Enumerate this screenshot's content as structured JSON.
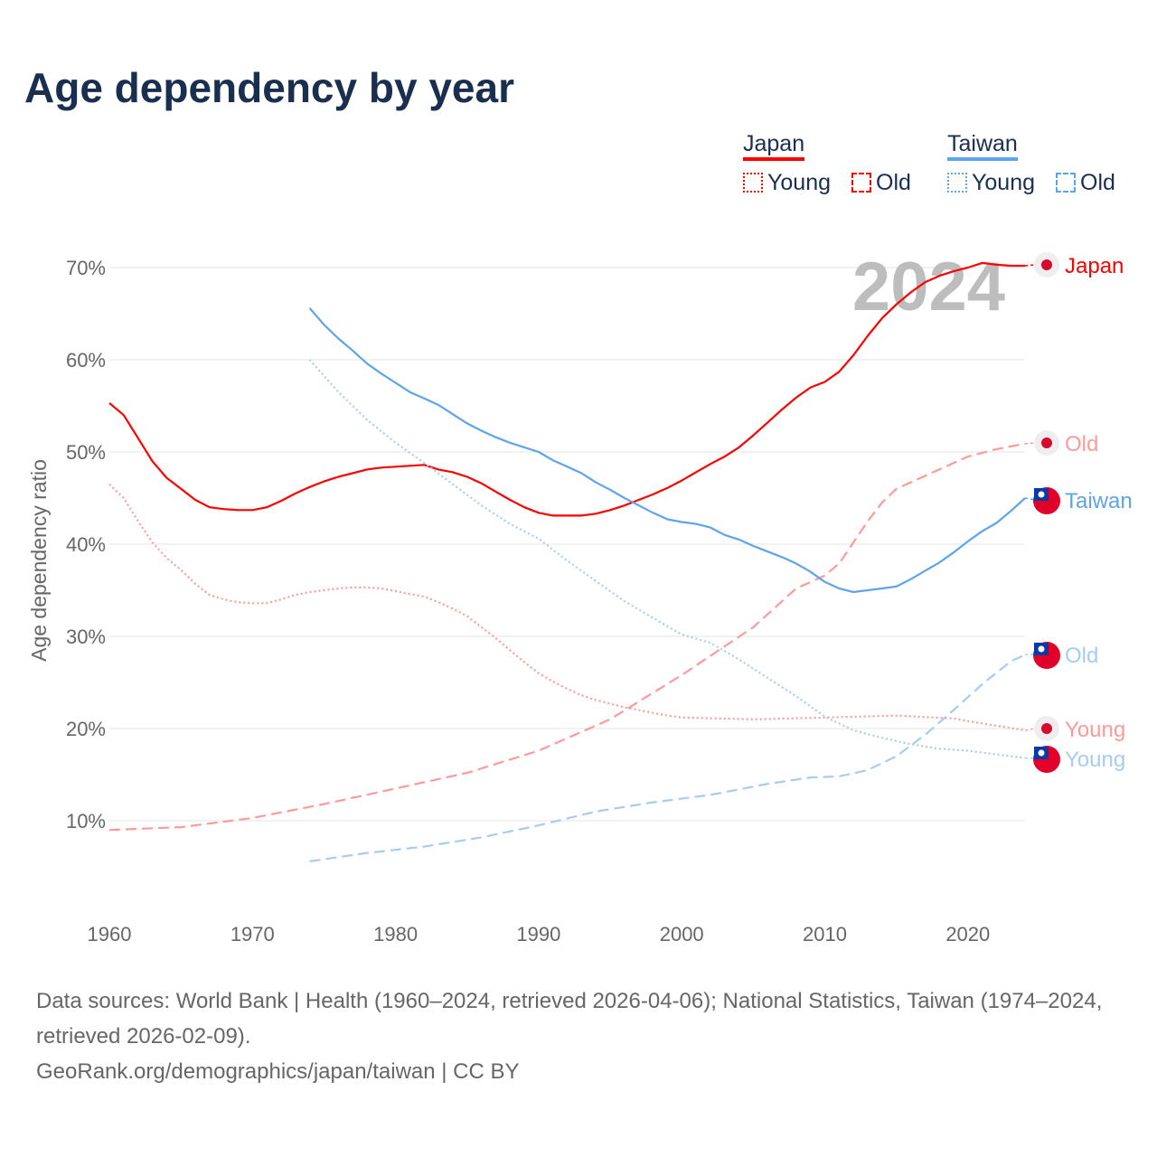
{
  "title": "Age dependency by year",
  "watermark_year": "2024",
  "legend": {
    "groups": [
      {
        "name": "Japan",
        "color": "#ff0000"
      },
      {
        "name": "Taiwan",
        "color": "#5fa3e8"
      }
    ],
    "young": "Young",
    "old": "Old"
  },
  "source": {
    "line1": "Data sources: World Bank | Health (1960–2024, retrieved 2026-04-06); National Statistics, Taiwan (1974–2024, retrieved 2026-02-09).",
    "line2": "GeoRank.org/demographics/japan/taiwan | CC BY"
  },
  "chart_data": {
    "type": "line",
    "title": "Age dependency by year",
    "ylabel": "Age dependency ratio",
    "xlim": [
      1960,
      2024
    ],
    "ylim": [
      0,
      70
    ],
    "xticks": [
      "1960",
      "1970",
      "1980",
      "1990",
      "2000",
      "2010",
      "2020"
    ],
    "yticks": [
      "10%",
      "20%",
      "30%",
      "40%",
      "50%",
      "60%",
      "70%"
    ],
    "end_labels": [
      "Japan",
      "Old",
      "Taiwan",
      "Old",
      "Young",
      "Young"
    ],
    "series": [
      {
        "name": "Japan",
        "country": "Japan",
        "kind": "total",
        "color": "#ff0000",
        "dash": "",
        "end_label": "Japan",
        "x": [
          1960,
          1961,
          1962,
          1963,
          1964,
          1965,
          1966,
          1967,
          1968,
          1969,
          1970,
          1971,
          1972,
          1973,
          1974,
          1975,
          1976,
          1977,
          1978,
          1979,
          1980,
          1981,
          1982,
          1983,
          1984,
          1985,
          1986,
          1987,
          1988,
          1989,
          1990,
          1991,
          1992,
          1993,
          1994,
          1995,
          1996,
          1997,
          1998,
          1999,
          2000,
          2001,
          2002,
          2003,
          2004,
          2005,
          2006,
          2007,
          2008,
          2009,
          2010,
          2011,
          2012,
          2013,
          2014,
          2015,
          2016,
          2017,
          2018,
          2019,
          2020,
          2021,
          2022,
          2023,
          2024
        ],
        "y": [
          55.3,
          54,
          51.5,
          49,
          47.2,
          46,
          44.8,
          44,
          43.8,
          43.7,
          43.7,
          44,
          44.7,
          45.5,
          46.2,
          46.8,
          47.3,
          47.7,
          48.1,
          48.3,
          48.4,
          48.5,
          48.6,
          48.1,
          47.8,
          47.3,
          46.6,
          45.7,
          44.8,
          44,
          43.4,
          43.1,
          43.1,
          43.1,
          43.3,
          43.7,
          44.2,
          44.8,
          45.4,
          46.1,
          46.9,
          47.8,
          48.7,
          49.5,
          50.5,
          51.8,
          53.2,
          54.6,
          55.9,
          57,
          57.6,
          58.7,
          60.5,
          62.6,
          64.5,
          66,
          67.3,
          68.4,
          69.1,
          69.6,
          70,
          70.5,
          70.3,
          70.2,
          70.2
        ]
      },
      {
        "name": "Japan Young",
        "country": "Japan",
        "kind": "young",
        "color": "#ff9a9a",
        "dash": "2 3",
        "end_label": "Young",
        "x": [
          1960,
          1961,
          1962,
          1963,
          1964,
          1965,
          1966,
          1967,
          1968,
          1969,
          1970,
          1971,
          1972,
          1973,
          1974,
          1975,
          1976,
          1977,
          1978,
          1979,
          1980,
          1981,
          1982,
          1983,
          1984,
          1985,
          1986,
          1987,
          1988,
          1989,
          1990,
          1991,
          1992,
          1993,
          1994,
          1995,
          1996,
          1997,
          1998,
          1999,
          2000,
          2005,
          2010,
          2015,
          2019,
          2020,
          2024
        ],
        "y": [
          46.5,
          45,
          42.5,
          40.2,
          38.5,
          37.2,
          35.7,
          34.5,
          34,
          33.7,
          33.6,
          33.6,
          34,
          34.5,
          34.8,
          35,
          35.2,
          35.3,
          35.3,
          35.2,
          34.9,
          34.6,
          34.3,
          33.7,
          33,
          32.2,
          31,
          29.8,
          28.5,
          27.2,
          26,
          25.1,
          24.3,
          23.6,
          23.1,
          22.7,
          22.3,
          22,
          21.7,
          21.4,
          21.2,
          21,
          21.2,
          21.4,
          21.1,
          20.8,
          19.8
        ]
      },
      {
        "name": "Japan Old",
        "country": "Japan",
        "kind": "old",
        "color": "#ff9a9a",
        "dash": "12 6",
        "end_label": "Old",
        "x": [
          1960,
          1965,
          1970,
          1975,
          1980,
          1985,
          1990,
          1995,
          2000,
          2005,
          2008,
          2010,
          2011,
          2012,
          2013,
          2014,
          2015,
          2017,
          2020,
          2022,
          2024
        ],
        "y": [
          9,
          9.3,
          10.3,
          11.8,
          13.5,
          15.2,
          17.6,
          21,
          25.8,
          31,
          35.2,
          36.6,
          37.9,
          40.2,
          42.5,
          44.5,
          46,
          47.4,
          49.5,
          50.3,
          50.9
        ]
      },
      {
        "name": "Taiwan",
        "country": "Taiwan",
        "kind": "total",
        "color": "#5fa3e8",
        "dash": "",
        "end_label": "Taiwan",
        "x": [
          1974,
          1975,
          1976,
          1977,
          1978,
          1979,
          1980,
          1981,
          1982,
          1983,
          1984,
          1985,
          1986,
          1987,
          1988,
          1989,
          1990,
          1991,
          1992,
          1993,
          1994,
          1995,
          1996,
          1997,
          1998,
          1999,
          2000,
          2001,
          2002,
          2003,
          2004,
          2005,
          2006,
          2007,
          2008,
          2009,
          2010,
          2011,
          2012,
          2013,
          2014,
          2015,
          2016,
          2017,
          2018,
          2019,
          2020,
          2021,
          2022,
          2023,
          2024
        ],
        "y": [
          65.6,
          63.8,
          62.3,
          61,
          59.6,
          58.5,
          57.5,
          56.5,
          55.8,
          55.1,
          54.1,
          53.1,
          52.3,
          51.6,
          51,
          50.5,
          50,
          49.1,
          48.4,
          47.7,
          46.7,
          45.9,
          45,
          44.2,
          43.4,
          42.7,
          42.4,
          42.2,
          41.8,
          41,
          40.5,
          39.8,
          39.2,
          38.6,
          37.9,
          37,
          35.9,
          35.2,
          34.8,
          35,
          35.2,
          35.4,
          36.2,
          37.1,
          38,
          39.1,
          40.3,
          41.4,
          42.3,
          43.6,
          45
        ]
      },
      {
        "name": "Taiwan Young",
        "country": "Taiwan",
        "kind": "young",
        "color": "#a8cbf2",
        "dash": "2 3",
        "end_label": "Young",
        "x": [
          1974,
          1976,
          1978,
          1980,
          1982,
          1984,
          1986,
          1988,
          1990,
          1992,
          1994,
          1996,
          1998,
          2000,
          2002,
          2004,
          2006,
          2008,
          2010,
          2012,
          2014,
          2016,
          2018,
          2020,
          2022,
          2024
        ],
        "y": [
          60,
          56.5,
          53.5,
          51,
          48.8,
          46.5,
          44.2,
          42.2,
          40.6,
          38.2,
          36,
          33.8,
          32,
          30.2,
          29.3,
          27.5,
          25.5,
          23.5,
          21.3,
          19.8,
          19,
          18.3,
          17.8,
          17.6,
          17.2,
          16.8
        ]
      },
      {
        "name": "Taiwan Old",
        "country": "Taiwan",
        "kind": "old",
        "color": "#a8cbf2",
        "dash": "12 6",
        "end_label": "Old",
        "x": [
          1974,
          1978,
          1982,
          1986,
          1990,
          1994,
          1998,
          2002,
          2006,
          2009,
          2011,
          2013,
          2015,
          2017,
          2019,
          2021,
          2023,
          2024
        ],
        "y": [
          5.6,
          6.5,
          7.2,
          8.2,
          9.5,
          11,
          12,
          12.8,
          14,
          14.7,
          14.8,
          15.5,
          17,
          19.3,
          22,
          24.8,
          27.3,
          28
        ]
      }
    ]
  }
}
